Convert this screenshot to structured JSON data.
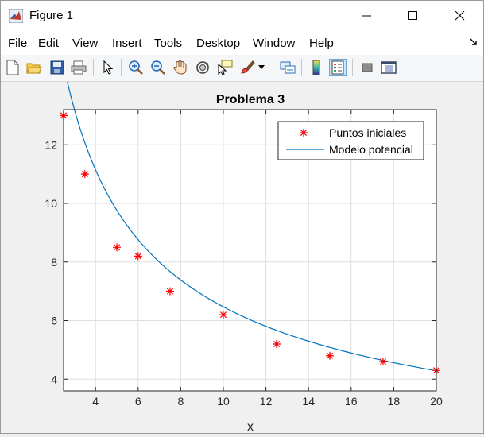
{
  "window": {
    "title": "Figure 1",
    "controls": {
      "minimize": "minimize",
      "maximize": "maximize",
      "close": "close"
    }
  },
  "menu": {
    "items": [
      {
        "label": "File",
        "underline": "F",
        "rest": "ile"
      },
      {
        "label": "Edit",
        "underline": "E",
        "rest": "dit"
      },
      {
        "label": "View",
        "underline": "V",
        "rest": "iew"
      },
      {
        "label": "Insert",
        "underline": "I",
        "rest": "nsert"
      },
      {
        "label": "Tools",
        "underline": "T",
        "rest": "ools"
      },
      {
        "label": "Desktop",
        "underline": "D",
        "rest": "esktop"
      },
      {
        "label": "Window",
        "underline": "W",
        "rest": "indow"
      },
      {
        "label": "Help",
        "underline": "H",
        "rest": "elp"
      }
    ]
  },
  "toolbar": {
    "buttons": [
      "new-figure-icon",
      "open-file-icon",
      "save-icon",
      "print-icon",
      "pointer-icon",
      "zoom-in-icon",
      "zoom-out-icon",
      "pan-icon",
      "rotate-3d-icon",
      "data-cursor-icon",
      "brush-icon",
      "brush-dropdown-icon",
      "link-plot-icon",
      "colorbar-icon",
      "legend-icon",
      "hide-plot-tools-icon",
      "show-plot-tools-icon"
    ]
  },
  "chart_data": {
    "type": "scatter",
    "title": "Problema 3",
    "xlabel": "x",
    "ylabel": "",
    "xlim": [
      2.5,
      20
    ],
    "ylim": [
      3.6,
      13.2
    ],
    "xticks": [
      4,
      6,
      8,
      10,
      12,
      14,
      16,
      18,
      20
    ],
    "yticks": [
      4,
      6,
      8,
      10,
      12
    ],
    "grid": true,
    "legend_position": "top-right",
    "series": [
      {
        "name": "Puntos iniciales",
        "kind": "markers",
        "marker": "*",
        "color": "#ff0000",
        "x": [
          2.5,
          3.5,
          5,
          6,
          7.5,
          10,
          12.5,
          15,
          17.5,
          20
        ],
        "y": [
          13,
          11,
          8.5,
          8.2,
          7,
          6.2,
          5.2,
          4.8,
          4.6,
          4.3
        ]
      },
      {
        "name": "Modelo potencial",
        "kind": "line",
        "color": "#0072bd",
        "model": {
          "a": 25.4,
          "b": -0.594
        }
      }
    ]
  }
}
